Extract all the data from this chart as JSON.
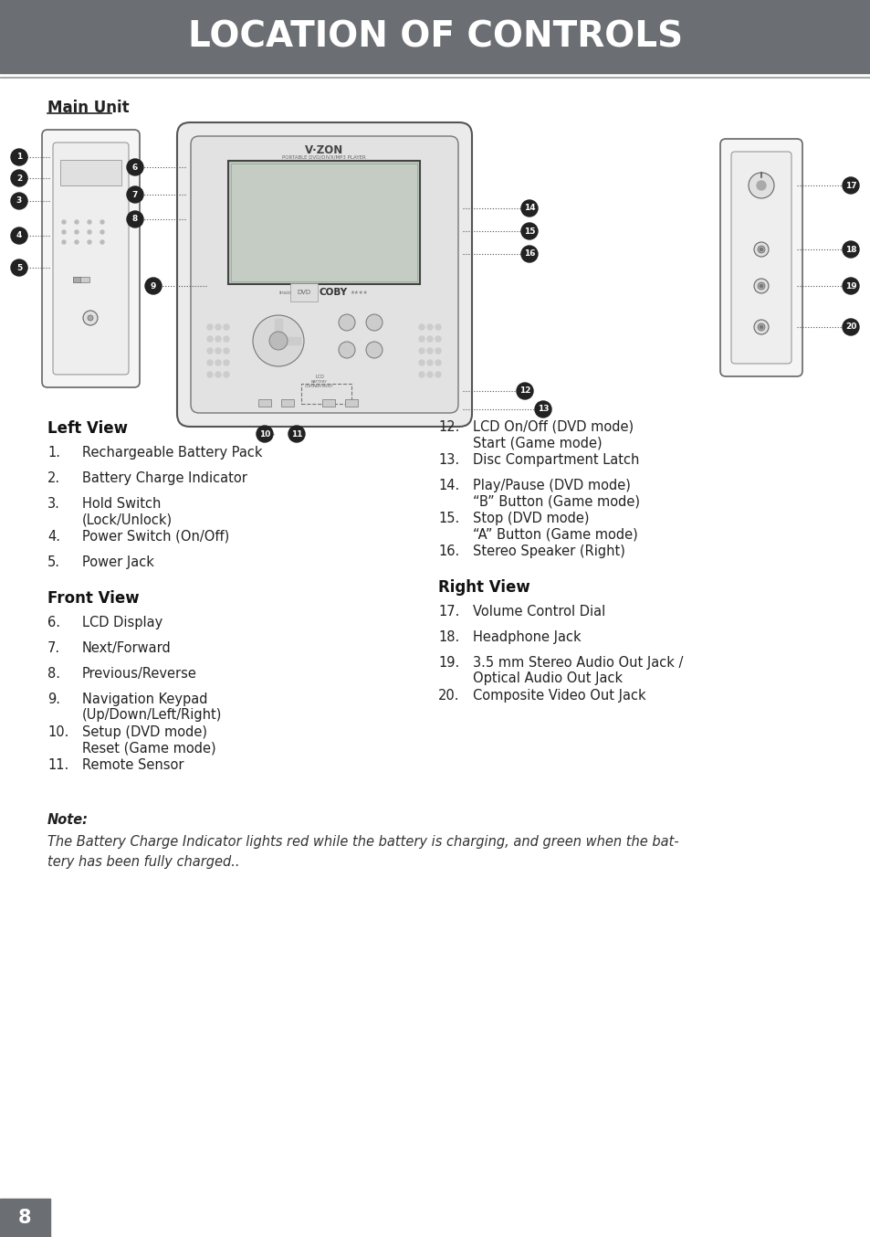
{
  "header_text": "LOCATION OF CONTROLS",
  "header_bg": "#6b6e73",
  "header_text_color": "#ffffff",
  "page_bg": "#ffffff",
  "page_number": "8",
  "page_num_bg": "#6b6e73",
  "page_num_color": "#ffffff",
  "main_unit_label": "Main Unit",
  "left_view_header": "Left View",
  "front_view_header": "Front View",
  "right_view_header": "Right View",
  "left_items": [
    [
      "1.",
      "Rechargeable Battery Pack"
    ],
    [
      "2.",
      "Battery Charge Indicator"
    ],
    [
      "3.",
      "Hold Switch\n(Lock/Unlock)"
    ],
    [
      "4.",
      "Power Switch (On/Off)"
    ],
    [
      "5.",
      "Power Jack"
    ]
  ],
  "front_items": [
    [
      "6.",
      "LCD Display"
    ],
    [
      "7.",
      "Next/Forward"
    ],
    [
      "8.",
      "Previous/Reverse"
    ],
    [
      "9.",
      "Navigation Keypad\n(Up/Down/Left/Right)"
    ],
    [
      "10.",
      "Setup (DVD mode)\nReset (Game mode)"
    ],
    [
      "11.",
      "Remote Sensor"
    ]
  ],
  "right_col_items_left": [
    [
      "12.",
      "LCD On/Off (DVD mode)\nStart (Game mode)"
    ],
    [
      "13.",
      "Disc Compartment Latch"
    ],
    [
      "14.",
      "Play/Pause (DVD mode)\n“B” Button (Game mode)"
    ],
    [
      "15.",
      "Stop (DVD mode)\n“A” Button (Game mode)"
    ],
    [
      "16.",
      "Stereo Speaker (Right)"
    ]
  ],
  "right_col_items_right": [
    [
      "17.",
      "Volume Control Dial"
    ],
    [
      "18.",
      "Headphone Jack"
    ],
    [
      "19.",
      "3.5 mm Stereo Audio Out Jack /\nOptical Audio Out Jack"
    ],
    [
      "20.",
      "Composite Video Out Jack"
    ]
  ],
  "note_label": "Note:",
  "note_text": "The Battery Charge Indicator lights red while the battery is charging, and green when the bat-\ntery has been fully charged.."
}
